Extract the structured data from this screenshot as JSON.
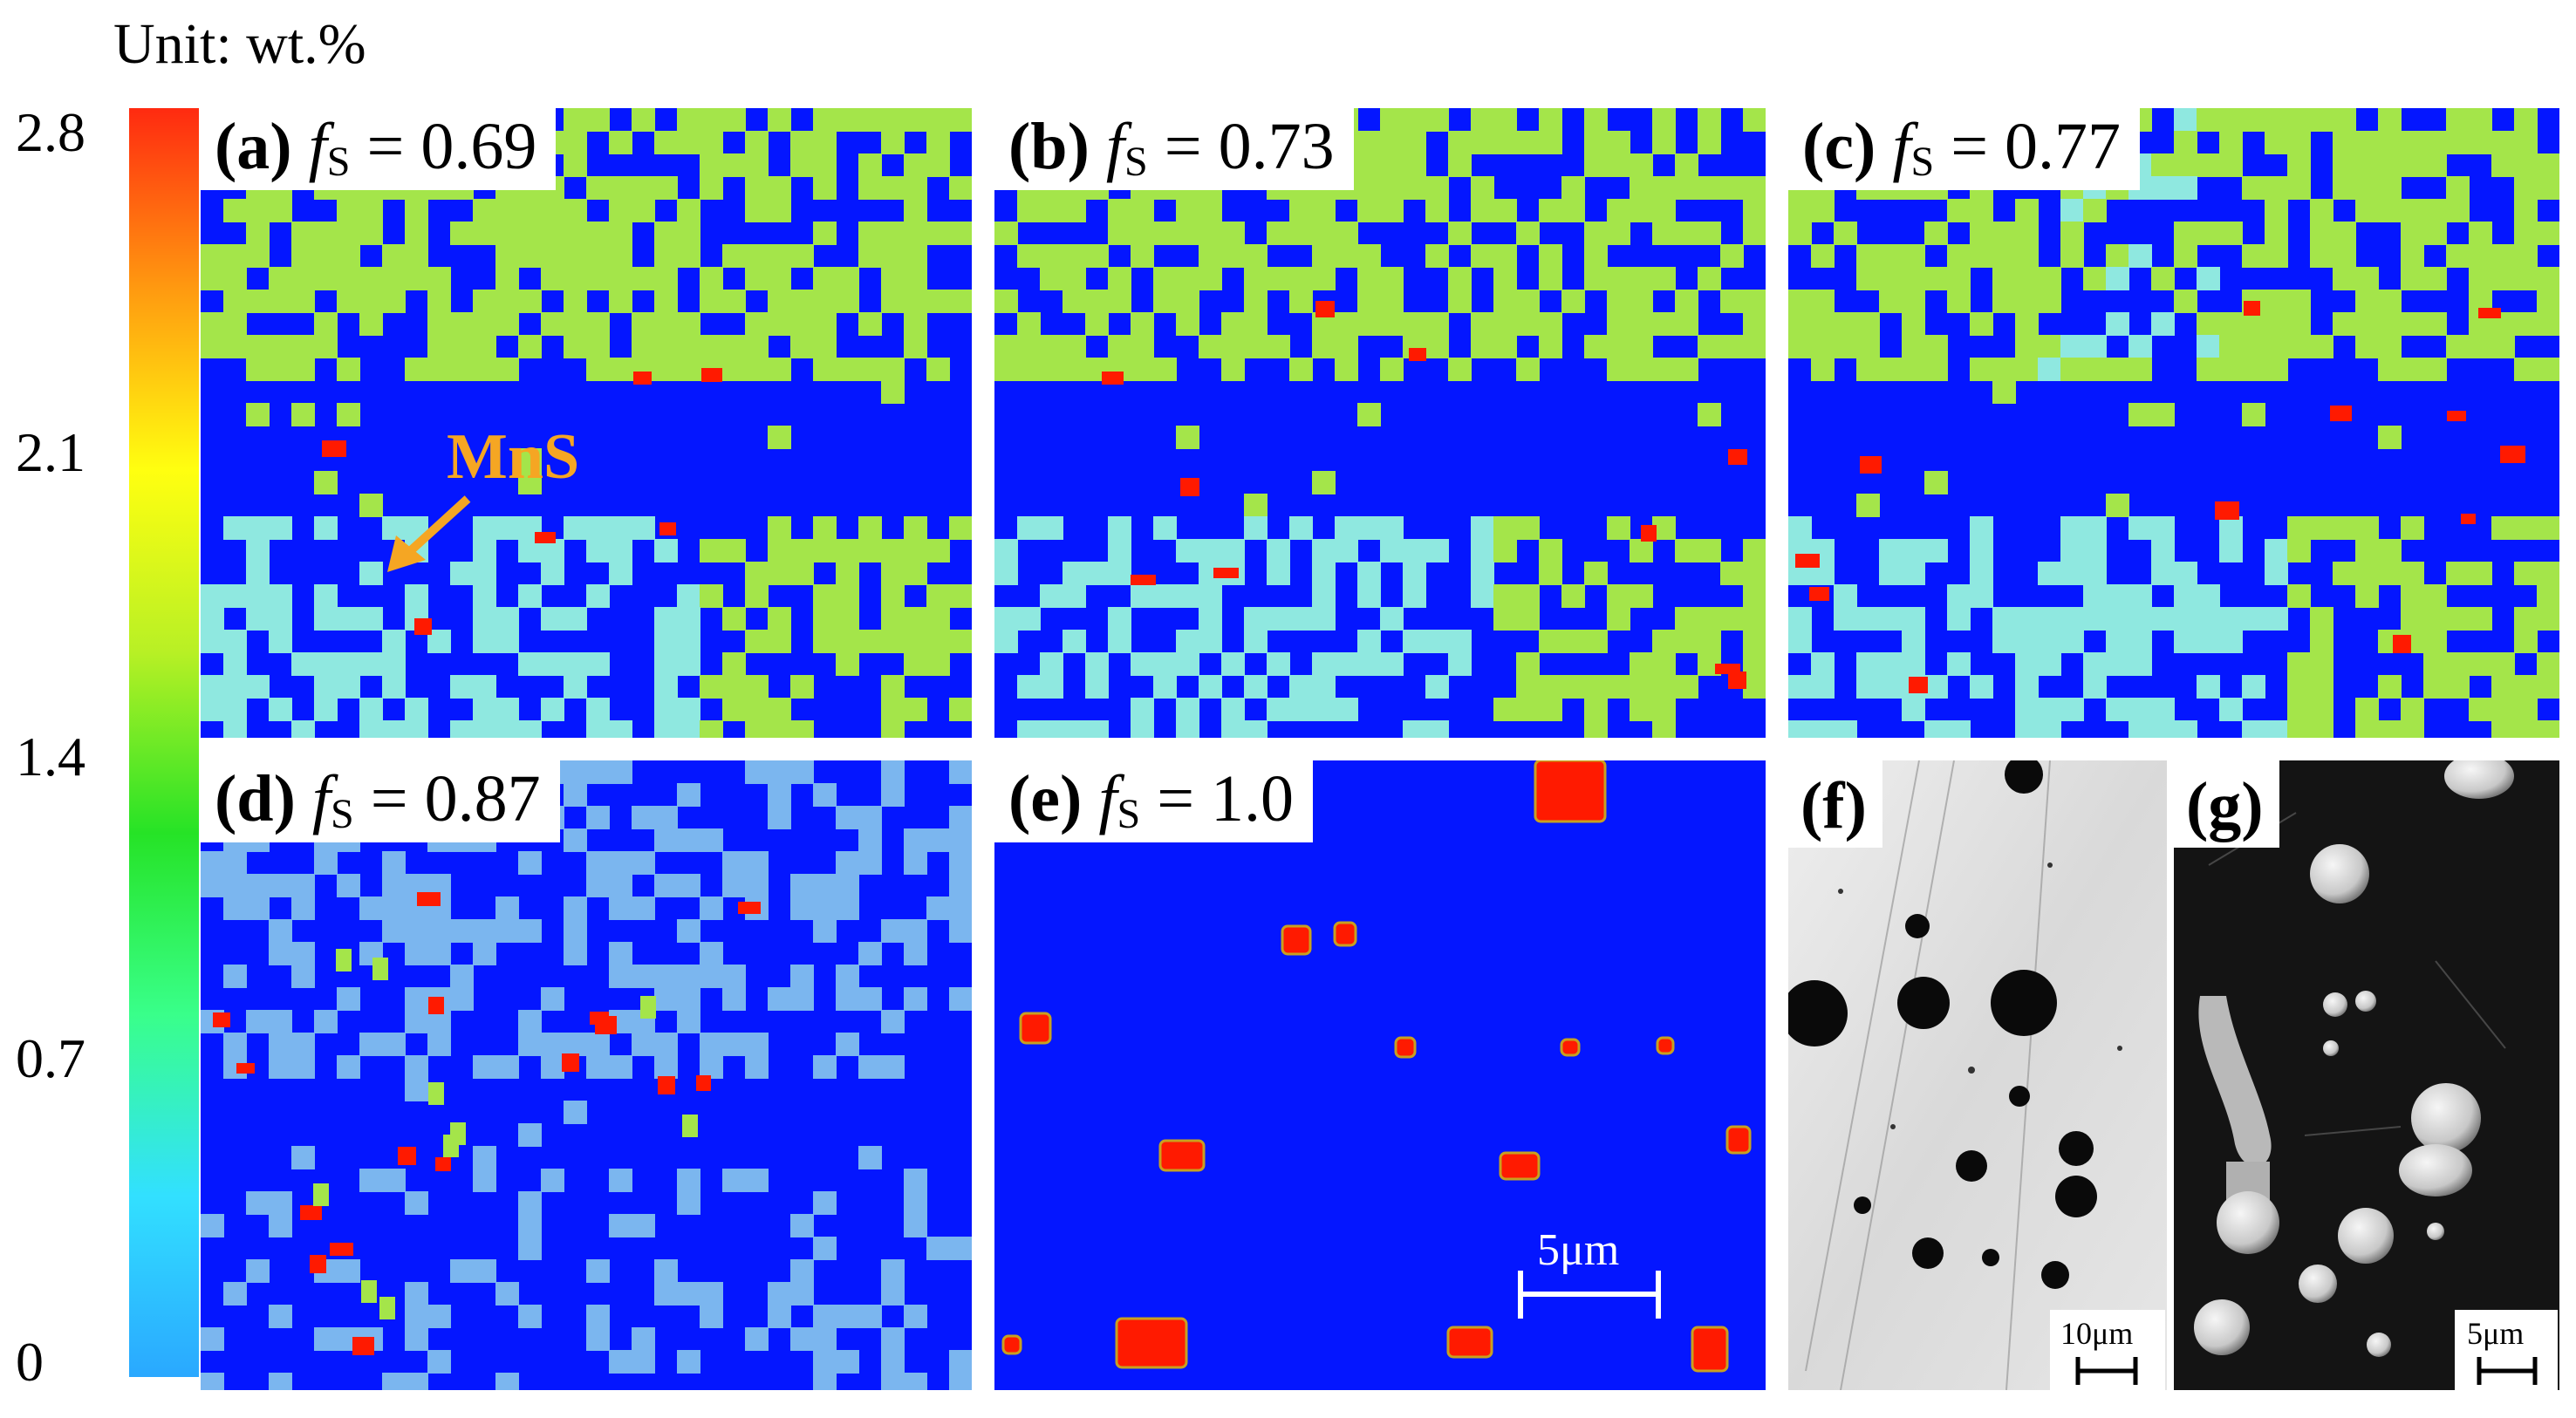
{
  "colorbar": {
    "unit_label": "Unit: wt.%",
    "ticks": [
      "2.8",
      "2.1",
      "1.4",
      "0.7",
      "0"
    ],
    "tick_values": [
      2.8,
      2.1,
      1.4,
      0.7,
      0
    ],
    "min": 0,
    "max": 2.8,
    "colors": [
      "#2aa8ff",
      "#32e0ff",
      "#39ff8a",
      "#26e326",
      "#b8f025",
      "#ffff10",
      "#ff9a10",
      "#ff2a10"
    ]
  },
  "colors": {
    "matrix": "#0416ff",
    "mid_phase": "#a4e54a",
    "light_phase": "#8fe8e0",
    "pale_blue": "#7bb6ef",
    "mns": "#ff1a00",
    "mns_edge": "#c8a020",
    "annotation": "#f5a623"
  },
  "panels": [
    {
      "letter": "(a)",
      "fs_symbol": "f",
      "fs_sub": "S",
      "fs_value": "= 0.69"
    },
    {
      "letter": "(b)",
      "fs_symbol": "f",
      "fs_sub": "S",
      "fs_value": "= 0.73"
    },
    {
      "letter": "(c)",
      "fs_symbol": "f",
      "fs_sub": "S",
      "fs_value": "= 0.77"
    },
    {
      "letter": "(d)",
      "fs_symbol": "f",
      "fs_sub": "S",
      "fs_value": "= 0.87"
    },
    {
      "letter": "(e)",
      "fs_symbol": "f",
      "fs_sub": "S",
      "fs_value": "= 1.0"
    }
  ],
  "micrographs": [
    {
      "letter": "(f)",
      "scale_label": "10μm"
    },
    {
      "letter": "(g)",
      "scale_label": "5μm"
    }
  ],
  "annotation": {
    "label": "MnS"
  },
  "panel_e_scale": {
    "label": "5μm"
  }
}
